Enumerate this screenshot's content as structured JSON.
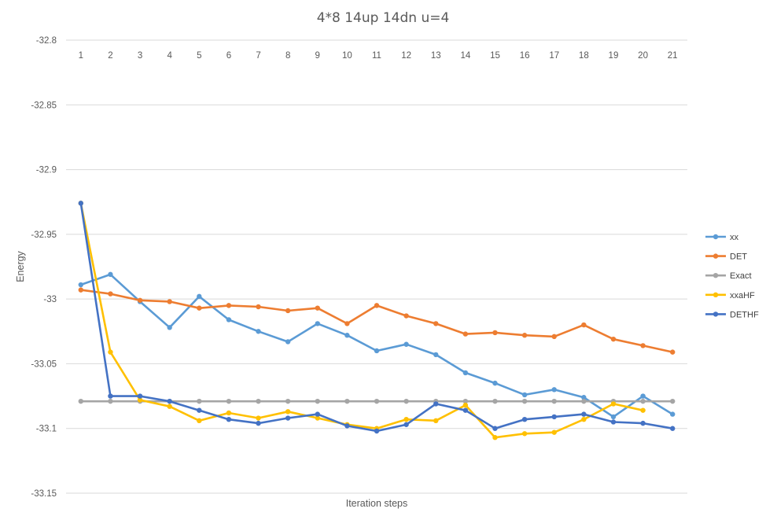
{
  "chart_data": {
    "type": "line",
    "title": "4*8 14up 14dn u=4",
    "xlabel": "Iteration steps",
    "ylabel": "Energy",
    "categories": [
      "1",
      "2",
      "3",
      "4",
      "5",
      "6",
      "7",
      "8",
      "9",
      "10",
      "11",
      "12",
      "13",
      "14",
      "15",
      "16",
      "17",
      "18",
      "19",
      "20",
      "21"
    ],
    "ylim": [
      -33.15,
      -32.8
    ],
    "yticks": [
      -32.8,
      -32.85,
      -32.9,
      -32.95,
      -33,
      -33.05,
      -33.1,
      -33.15
    ],
    "ytick_labels": [
      "-32.8",
      "-32.85",
      "-32.9",
      "-32.95",
      "-33",
      "-33.05",
      "-33.1",
      "-33.15"
    ],
    "x_axis_position": "top",
    "grid": true,
    "legend_position": "right",
    "series": [
      {
        "name": "xx",
        "color": "#5b9bd5",
        "values": [
          -32.989,
          -32.981,
          -33.002,
          -33.022,
          -32.998,
          -33.016,
          -33.025,
          -33.033,
          -33.019,
          -33.028,
          -33.04,
          -33.035,
          -33.043,
          -33.057,
          -33.065,
          -33.074,
          -33.07,
          -33.076,
          -33.091,
          -33.075,
          -33.089
        ]
      },
      {
        "name": "DET",
        "color": "#ed7d31",
        "values": [
          -32.993,
          -32.996,
          -33.001,
          -33.002,
          -33.007,
          -33.005,
          -33.006,
          -33.009,
          -33.007,
          -33.019,
          -33.005,
          -33.013,
          -33.019,
          -33.027,
          -33.026,
          -33.028,
          -33.029,
          -33.02,
          -33.031,
          -33.036,
          -33.041
        ]
      },
      {
        "name": "Exact",
        "color": "#a5a5a5",
        "values": [
          -33.079,
          -33.079,
          -33.079,
          -33.079,
          -33.079,
          -33.079,
          -33.079,
          -33.079,
          -33.079,
          -33.079,
          -33.079,
          -33.079,
          -33.079,
          -33.079,
          -33.079,
          -33.079,
          -33.079,
          -33.079,
          -33.079,
          -33.079,
          -33.079
        ]
      },
      {
        "name": "xxaHF",
        "color": "#ffc000",
        "values": [
          -32.926,
          -33.041,
          -33.078,
          -33.083,
          -33.094,
          -33.088,
          -33.092,
          -33.087,
          -33.092,
          -33.097,
          -33.1,
          -33.093,
          -33.094,
          -33.082,
          -33.107,
          -33.104,
          -33.103,
          -33.093,
          -33.081,
          -33.086,
          null
        ]
      },
      {
        "name": "DETHF",
        "color": "#4472c4",
        "values": [
          -32.926,
          -33.075,
          -33.075,
          -33.079,
          -33.086,
          -33.093,
          -33.096,
          -33.092,
          -33.089,
          -33.098,
          -33.102,
          -33.097,
          -33.081,
          -33.086,
          -33.1,
          -33.093,
          -33.091,
          -33.089,
          -33.095,
          -33.096,
          -33.1
        ]
      }
    ]
  }
}
